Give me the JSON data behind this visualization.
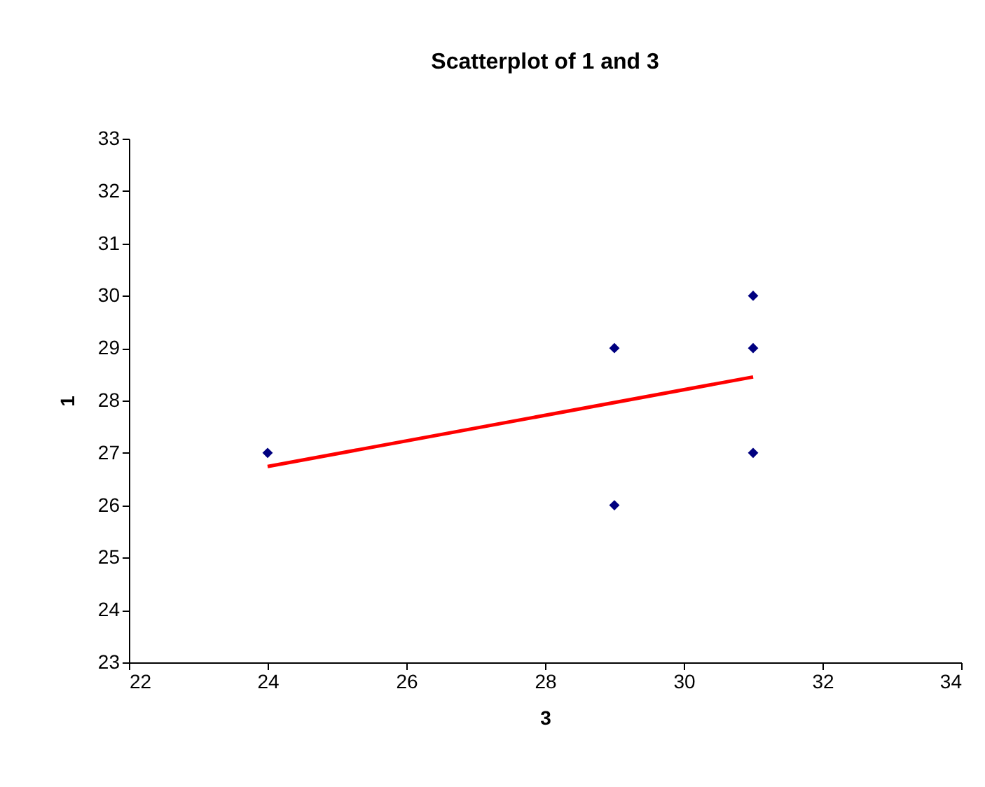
{
  "chart_data": {
    "type": "scatter",
    "title": "Scatterplot of 1 and 3",
    "xlabel": "3",
    "ylabel": "1",
    "xlim": [
      22,
      34
    ],
    "xticks": [
      22,
      24,
      26,
      28,
      30,
      32,
      34
    ],
    "ylim": [
      23,
      33
    ],
    "yticks": [
      23,
      24,
      25,
      26,
      27,
      28,
      29,
      30,
      31,
      32,
      33
    ],
    "grid": false,
    "series": [
      {
        "type": "scatter",
        "color": "#000080",
        "marker": "diamond",
        "x": [
          24,
          29,
          29,
          31,
          31,
          31
        ],
        "values": [
          27,
          29,
          26,
          30,
          29,
          27
        ]
      },
      {
        "type": "line",
        "color": "#ff0000",
        "line_style": "solid",
        "x": [
          24,
          31
        ],
        "values": [
          26.74,
          28.45
        ]
      }
    ]
  }
}
